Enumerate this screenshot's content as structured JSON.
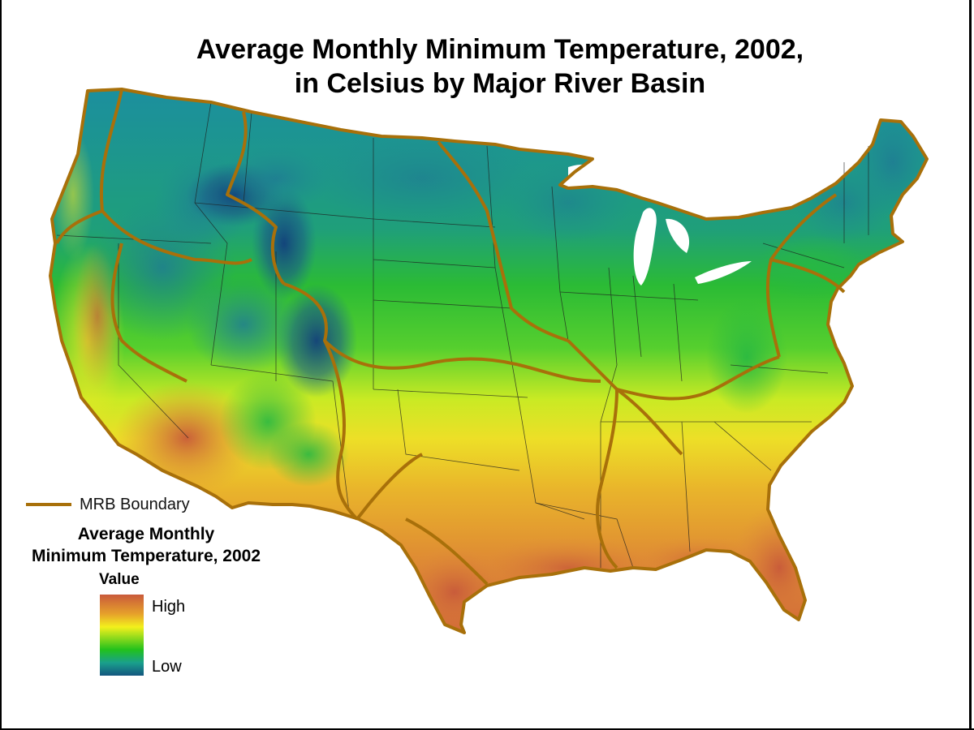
{
  "title": {
    "line1": "Average Monthly Minimum Temperature, 2002,",
    "line2": "in Celsius by Major River Basin"
  },
  "legend": {
    "boundary_label": "MRB Boundary",
    "title_line1": "Average Monthly",
    "title_line2": "Minimum Temperature, 2002",
    "value_heading": "Value",
    "high_label": "High",
    "low_label": "Low"
  },
  "colors": {
    "boundary": "#a8700a",
    "high": "#c95a3b",
    "mid_high": "#e6a12b",
    "mid": "#f3f01c",
    "mid_low": "#22c11c",
    "low_mid": "#1aa08c",
    "low": "#13567f"
  }
}
